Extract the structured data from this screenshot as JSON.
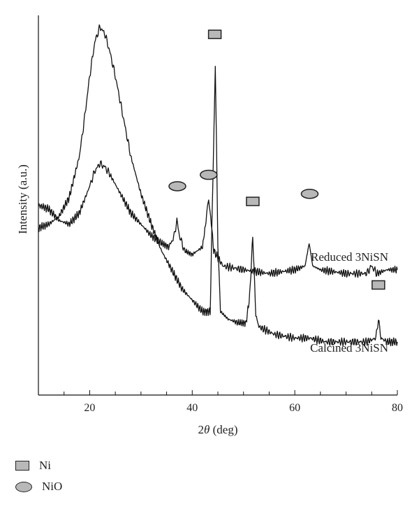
{
  "chart_data": {
    "type": "line",
    "xlabel": "2θ (deg)",
    "xlabel_prefix": "2",
    "xlabel_symbol": "θ",
    "xlabel_suffix": " (deg)",
    "ylabel": "Intensity (a.u.)",
    "xlim": [
      10,
      80
    ],
    "xticks": [
      20,
      40,
      60,
      80
    ],
    "grid": false,
    "series": [
      {
        "name": "Reduced 3NiSN",
        "x": [
          10,
          12,
          14,
          16,
          18,
          19,
          20,
          21,
          22,
          23,
          24,
          25,
          26,
          27,
          28,
          30,
          32,
          34,
          36,
          38,
          40,
          42,
          43.5,
          44.0,
          44.5,
          45.0,
          45.5,
          47,
          49,
          50.5,
          51.2,
          51.8,
          52.4,
          53,
          56,
          60,
          63,
          66,
          70,
          74,
          75.8,
          76.3,
          76.8,
          78,
          80
        ],
        "values": [
          0.44,
          0.45,
          0.47,
          0.52,
          0.63,
          0.73,
          0.84,
          0.93,
          0.97,
          0.95,
          0.9,
          0.84,
          0.77,
          0.7,
          0.63,
          0.53,
          0.45,
          0.38,
          0.33,
          0.28,
          0.25,
          0.22,
          0.22,
          0.55,
          0.87,
          0.4,
          0.22,
          0.2,
          0.19,
          0.19,
          0.26,
          0.42,
          0.21,
          0.18,
          0.16,
          0.15,
          0.15,
          0.14,
          0.14,
          0.14,
          0.15,
          0.2,
          0.15,
          0.14,
          0.14
        ]
      },
      {
        "name": "Calcined 3NiSN",
        "x": [
          10,
          12,
          14,
          16,
          18,
          20,
          21,
          22,
          23,
          24,
          26,
          28,
          30,
          32,
          34,
          35.5,
          36.5,
          37,
          37.5,
          38.5,
          40,
          42,
          42.8,
          43.2,
          43.6,
          44.2,
          46,
          50,
          55,
          60,
          62,
          62.8,
          63.5,
          65,
          70,
          74,
          75,
          76,
          78,
          80
        ],
        "values": [
          0.5,
          0.49,
          0.46,
          0.45,
          0.48,
          0.55,
          0.59,
          0.61,
          0.6,
          0.58,
          0.53,
          0.48,
          0.45,
          0.42,
          0.4,
          0.39,
          0.42,
          0.46,
          0.42,
          0.38,
          0.37,
          0.39,
          0.47,
          0.52,
          0.47,
          0.38,
          0.34,
          0.33,
          0.32,
          0.33,
          0.34,
          0.4,
          0.34,
          0.33,
          0.32,
          0.32,
          0.34,
          0.32,
          0.33,
          0.33
        ]
      }
    ],
    "ylim": [
      0,
      1
    ],
    "curve_labels": [
      "Reduced 3NiSN",
      "Calcined 3NiSN"
    ],
    "peak_markers": [
      {
        "phase": "Ni",
        "shape": "square",
        "x": 44.4,
        "y": 0.95
      },
      {
        "phase": "Ni",
        "shape": "square",
        "x": 51.8,
        "y": 0.51
      },
      {
        "phase": "Ni",
        "shape": "square",
        "x": 76.3,
        "y": 0.29
      },
      {
        "phase": "NiO",
        "shape": "ellipse",
        "x": 37.1,
        "y": 0.55
      },
      {
        "phase": "NiO",
        "shape": "ellipse",
        "x": 43.2,
        "y": 0.58
      },
      {
        "phase": "NiO",
        "shape": "ellipse",
        "x": 62.9,
        "y": 0.53
      }
    ],
    "legend": {
      "placement": "bottom-left",
      "entries": [
        {
          "label": "Ni",
          "shape": "square"
        },
        {
          "label": "NiO",
          "shape": "ellipse"
        }
      ]
    },
    "colors": {
      "line": "#111111",
      "marker_fill": "#b8b8b8",
      "marker_stroke": "#222222"
    }
  }
}
